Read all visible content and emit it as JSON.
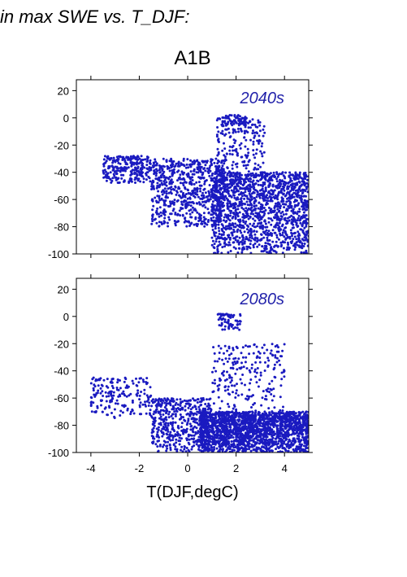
{
  "title": "in max SWE vs. T_DJF:",
  "subtitle": "A1B",
  "xlabel": "T(DJF,degC)",
  "colors": {
    "points": "#1a1ac0",
    "panel_label": "#2222aa",
    "axis": "#000000"
  },
  "chart_data": [
    {
      "type": "scatter",
      "panel_label": "2040s",
      "xlim": [
        -4.6,
        5.0
      ],
      "ylim": [
        -100,
        28
      ],
      "yticks": [
        20,
        0,
        -20,
        -40,
        -60,
        -80,
        -100
      ],
      "xticks": [
        -4,
        -2,
        0,
        2,
        4
      ],
      "show_xtick_labels": false,
      "grid": false,
      "clusters": [
        {
          "n": 260,
          "cx": [
            -3.5,
            -1.5
          ],
          "cy": [
            -48,
            -28
          ],
          "desc": "cold-tail"
        },
        {
          "n": 700,
          "cx": [
            -1.5,
            1.5
          ],
          "cy": [
            -80,
            -30
          ],
          "desc": "mid"
        },
        {
          "n": 1500,
          "cx": [
            1.0,
            5.0
          ],
          "cy": [
            -100,
            -40
          ],
          "desc": "warm-dense"
        },
        {
          "n": 180,
          "cx": [
            1.2,
            3.2
          ],
          "cy": [
            -40,
            0
          ],
          "desc": "upper"
        },
        {
          "n": 60,
          "cx": [
            1.4,
            2.4
          ],
          "cy": [
            -6,
            2
          ],
          "desc": "peak"
        }
      ]
    },
    {
      "type": "scatter",
      "panel_label": "2080s",
      "xlim": [
        -4.6,
        5.0
      ],
      "ylim": [
        -100,
        28
      ],
      "yticks": [
        20,
        0,
        -20,
        -40,
        -60,
        -80,
        -100
      ],
      "xticks": [
        -4,
        -2,
        0,
        2,
        4
      ],
      "xticklabels": [
        "-4",
        "-2",
        "0",
        "2",
        "4"
      ],
      "show_xtick_labels": true,
      "grid": false,
      "clusters": [
        {
          "n": 180,
          "cx": [
            -4.0,
            -1.5
          ],
          "cy": [
            -75,
            -45
          ],
          "desc": "cold-tail"
        },
        {
          "n": 500,
          "cx": [
            -1.5,
            1.0
          ],
          "cy": [
            -100,
            -60
          ],
          "desc": "mid"
        },
        {
          "n": 1800,
          "cx": [
            0.5,
            5.0
          ],
          "cy": [
            -100,
            -70
          ],
          "desc": "warm-dense"
        },
        {
          "n": 220,
          "cx": [
            1.0,
            4.0
          ],
          "cy": [
            -70,
            -20
          ],
          "desc": "upper"
        },
        {
          "n": 70,
          "cx": [
            1.2,
            2.2
          ],
          "cy": [
            -10,
            2
          ],
          "desc": "peak"
        }
      ]
    }
  ]
}
